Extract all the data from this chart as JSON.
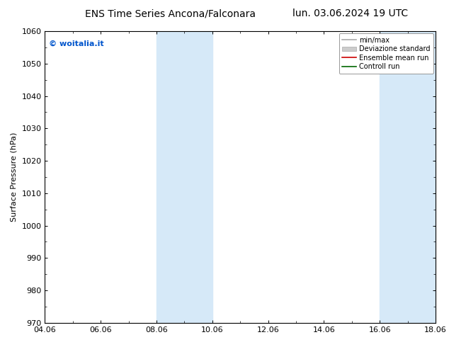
{
  "title_left": "ENS Time Series Ancona/Falconara",
  "title_right": "lun. 03.06.2024 19 UTC",
  "ylabel": "Surface Pressure (hPa)",
  "watermark": "© woitalia.it",
  "ylim": [
    970,
    1060
  ],
  "yticks": [
    970,
    980,
    990,
    1000,
    1010,
    1020,
    1030,
    1040,
    1050,
    1060
  ],
  "xlim_start": 0,
  "xlim_end": 14,
  "xtick_labels": [
    "04.06",
    "06.06",
    "08.06",
    "10.06",
    "12.06",
    "14.06",
    "16.06",
    "18.06"
  ],
  "xtick_positions": [
    0,
    2,
    4,
    6,
    8,
    10,
    12,
    14
  ],
  "shaded_bands": [
    {
      "x_start": 4,
      "x_end": 6
    },
    {
      "x_start": 12,
      "x_end": 14
    }
  ],
  "shaded_color": "#d6e9f8",
  "background_color": "#ffffff",
  "legend_items": [
    {
      "label": "min/max",
      "color": "#aaaaaa"
    },
    {
      "label": "Deviazione standard",
      "color": "#cccccc"
    },
    {
      "label": "Ensemble mean run",
      "color": "#cc0000"
    },
    {
      "label": "Controll run",
      "color": "#006600"
    }
  ],
  "watermark_color": "#0055cc",
  "title_fontsize": 10,
  "axis_fontsize": 8,
  "tick_fontsize": 8
}
